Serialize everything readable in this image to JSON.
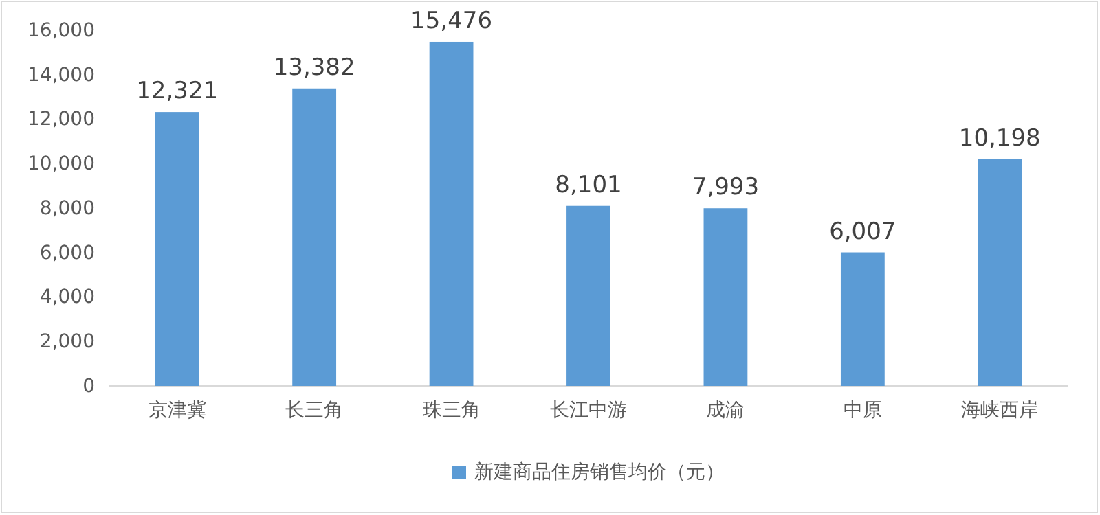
{
  "chart_data": {
    "type": "bar",
    "categories": [
      "京津冀",
      "长三角",
      "珠三角",
      "长江中游",
      "成渝",
      "中原",
      "海峡西岸"
    ],
    "series": [
      {
        "name": "新建商品住房销售均价（元）",
        "color": "#5b9bd5",
        "values": [
          12321,
          13382,
          15476,
          8101,
          7993,
          6007,
          10198
        ],
        "value_labels": [
          "12,321",
          "13,382",
          "15,476",
          "8,101",
          "7,993",
          "6,007",
          "10,198"
        ]
      }
    ],
    "ylim": [
      0,
      16000
    ],
    "yticks": [
      {
        "value": 0,
        "label": "0"
      },
      {
        "value": 2000,
        "label": "2,000"
      },
      {
        "value": 4000,
        "label": "4,000"
      },
      {
        "value": 6000,
        "label": "6,000"
      },
      {
        "value": 8000,
        "label": "8,000"
      },
      {
        "value": 10000,
        "label": "10,000"
      },
      {
        "value": 12000,
        "label": "12,000"
      },
      {
        "value": 14000,
        "label": "14,000"
      },
      {
        "value": 16000,
        "label": "16,000"
      }
    ],
    "legend": "bottom",
    "grid": false
  }
}
